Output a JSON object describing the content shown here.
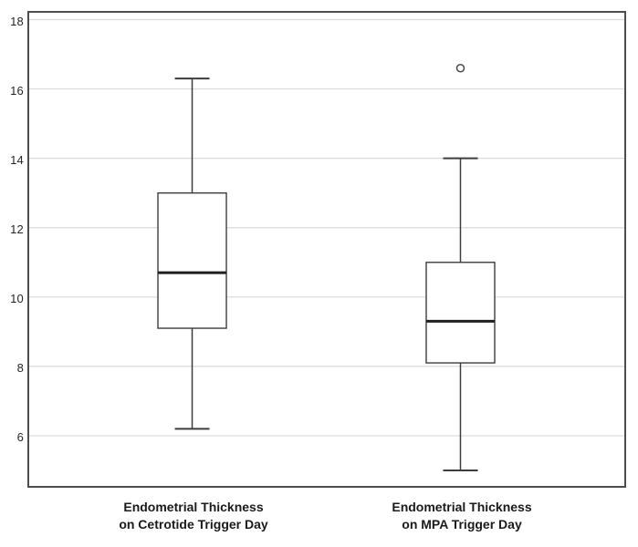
{
  "chart_data": {
    "type": "boxplot",
    "title": "",
    "xlabel": "",
    "ylabel": "",
    "ylim": [
      4.5,
      18.25
    ],
    "yticks": [
      18,
      16,
      14,
      12,
      10,
      8,
      6
    ],
    "grid": true,
    "legend_position": "none",
    "categories": [
      {
        "line1": "Endometrial Thickness",
        "line2": "on Cetrotide Trigger Day"
      },
      {
        "line1": "Endometrial Thickness",
        "line2": "on MPA Trigger Day"
      }
    ],
    "series": [
      {
        "name": "Endometrial Thickness on Cetrotide Trigger Day",
        "whisker_low": 6.2,
        "q1": 9.1,
        "median": 10.7,
        "q3": 13.0,
        "whisker_high": 16.3,
        "outliers": []
      },
      {
        "name": "Endometrial Thickness on MPA Trigger Day",
        "whisker_low": 5.0,
        "q1": 8.1,
        "median": 9.3,
        "q3": 11.0,
        "whisker_high": 14.0,
        "outliers": [
          16.6
        ]
      }
    ],
    "colors": {
      "box_fill": "#ffffff",
      "box_stroke": "#3d3d3d",
      "median": "#1f1f1f",
      "whisker": "#3d3d3d",
      "outlier_stroke": "#4a4a4a",
      "grid": "#d9d9d9",
      "frame": "#4d4d4d",
      "text": "#262626"
    }
  }
}
